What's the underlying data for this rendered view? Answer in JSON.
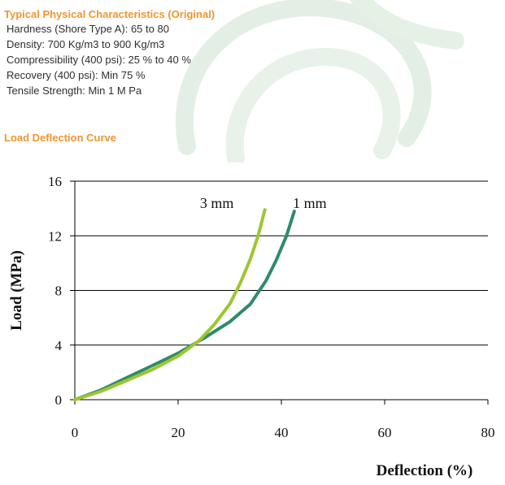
{
  "specs": {
    "heading": "Typical Physical Characteristics (Original)",
    "items": [
      "Hardness (Shore Type A):  65  to 80",
      "Density:  700 Kg/m3 to 900 Kg/m3",
      "Compressibility (400 psi):  25 % to 40 %",
      "Recovery (400 psi):  Min 75 %",
      "Tensile Strength:  Min 1 M Pa"
    ]
  },
  "curve_section": {
    "heading": "Load Deflection Curve"
  },
  "colors": {
    "heading_orange": "#f0952f",
    "series_3mm": "#9cc632",
    "series_1mm": "#2e8b6a",
    "watermark": "#e3efe4"
  },
  "chart_data": {
    "type": "line",
    "xlabel": "Deflection (%)",
    "ylabel": "Load (MPa)",
    "xlim": [
      0,
      80
    ],
    "ylim": [
      0,
      16
    ],
    "xticks": [
      0,
      20,
      40,
      60,
      80
    ],
    "yticks": [
      0,
      4,
      8,
      12,
      16
    ],
    "grid": "horizontal",
    "series": [
      {
        "name": "3 mm",
        "color": "#9cc632",
        "x": [
          0,
          5,
          10,
          15,
          20,
          24,
          27,
          30,
          32,
          34,
          35.5,
          36.8
        ],
        "y": [
          0,
          0.6,
          1.4,
          2.2,
          3.2,
          4.3,
          5.5,
          7.0,
          8.5,
          10.3,
          12.0,
          13.9
        ]
      },
      {
        "name": "1 mm",
        "color": "#2e8b6a",
        "x": [
          0,
          5,
          10,
          15,
          20,
          25,
          30,
          34,
          37,
          39,
          41,
          42.5
        ],
        "y": [
          0,
          0.7,
          1.6,
          2.5,
          3.4,
          4.5,
          5.7,
          7.0,
          8.7,
          10.2,
          12.0,
          13.8
        ]
      }
    ],
    "annotations": [
      {
        "text": "3 mm",
        "x": 27.5,
        "y": 14.4
      },
      {
        "text": "1 mm",
        "x": 45.5,
        "y": 14.4
      }
    ]
  }
}
